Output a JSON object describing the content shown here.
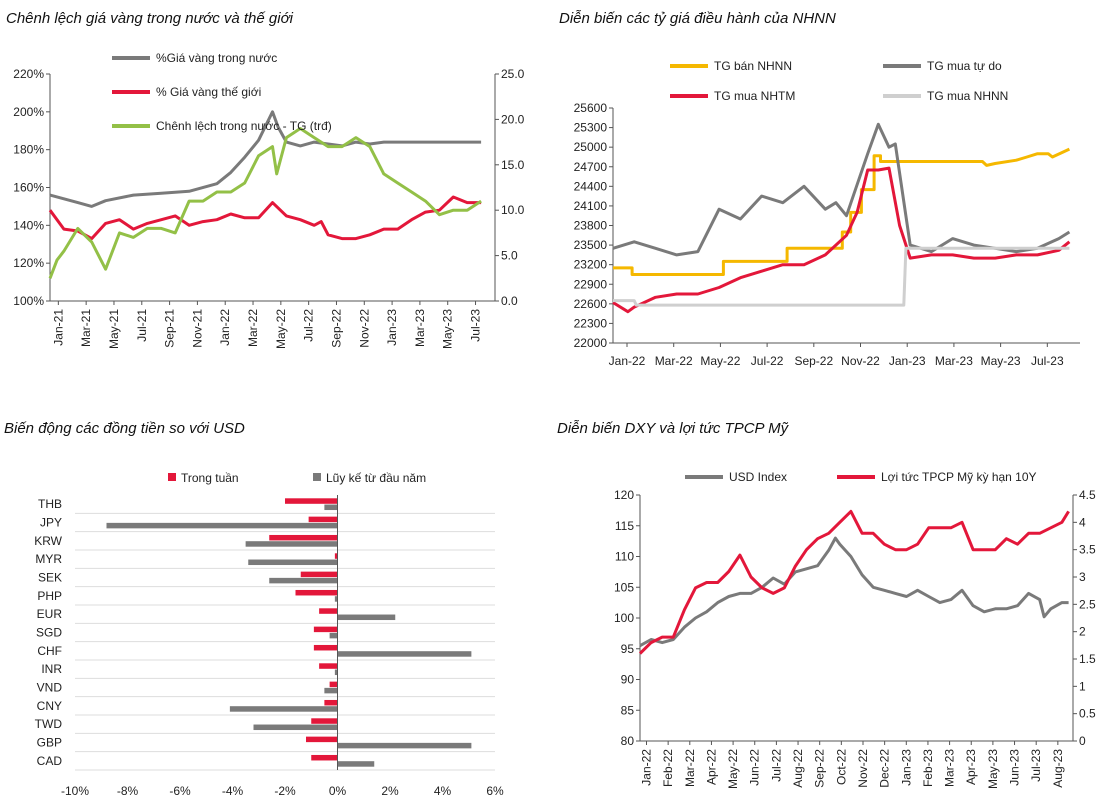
{
  "colors": {
    "gray": "#7a7a7a",
    "red": "#e3173a",
    "green": "#93c047",
    "yellow": "#f5b800",
    "lightgray": "#cfcfcf",
    "axis": "#555555"
  },
  "chart_data": [
    {
      "id": "gold",
      "type": "line",
      "title": "Chênh lệch giá vàng trong nước và thế giới",
      "x_ticks": [
        "Jan-21",
        "Mar-21",
        "May-21",
        "Jul-21",
        "Sep-21",
        "Nov-21",
        "Jan-22",
        "Mar-22",
        "May-22",
        "Jul-22",
        "Sep-22",
        "Nov-22",
        "Jan-23",
        "Mar-23",
        "May-23",
        "Jul-23"
      ],
      "y_left": {
        "min": 100,
        "max": 220,
        "ticks": [
          "100%",
          "120%",
          "140%",
          "160%",
          "180%",
          "200%",
          "220%"
        ]
      },
      "y_right": {
        "min": 0,
        "max": 25,
        "ticks": [
          "0.0",
          "5.0",
          "10.0",
          "15.0",
          "20.0",
          "25.0"
        ]
      },
      "legend": [
        "%Giá vàng trong nước",
        "% Giá vàng thế giới",
        "Chênh lệch trong nước - TG (trđ)"
      ],
      "series": [
        {
          "name": "%Giá vàng trong nước",
          "axis": "left",
          "color": "gray",
          "x": [
            0,
            2,
            3,
            4,
            6,
            8,
            10,
            12,
            13,
            14,
            15,
            16,
            16.4,
            17,
            18,
            19,
            20,
            21,
            22,
            23,
            24,
            26,
            28,
            30,
            31
          ],
          "y": [
            156,
            152,
            150,
            153,
            156,
            157,
            158,
            162,
            168,
            176,
            185,
            200,
            192,
            184,
            182,
            184,
            183,
            182,
            184,
            183,
            184,
            184,
            184,
            184,
            184
          ]
        },
        {
          "name": "% Giá vàng thế giới",
          "axis": "left",
          "color": "red",
          "x": [
            0,
            1,
            2,
            3,
            4,
            5,
            6,
            7,
            8,
            9,
            10,
            11,
            12,
            13,
            14,
            15,
            16,
            17,
            18,
            19,
            19.5,
            20,
            21,
            22,
            23,
            24,
            25,
            26,
            27,
            28,
            29,
            30,
            31
          ],
          "y": [
            148,
            138,
            137,
            133,
            141,
            143,
            138,
            141,
            143,
            145,
            140,
            142,
            143,
            146,
            144,
            144,
            152,
            145,
            143,
            140,
            142,
            135,
            133,
            133,
            135,
            138,
            138,
            143,
            147,
            148,
            155,
            152,
            152
          ]
        },
        {
          "name": "Chênh lệch trong nước - TG (trđ)",
          "axis": "right",
          "color": "green",
          "x": [
            0,
            0.5,
            1,
            2,
            3,
            4,
            5,
            6,
            7,
            8,
            9,
            10,
            11,
            12,
            13,
            14,
            15,
            16,
            16.3,
            17,
            18,
            19,
            20,
            21,
            22,
            23,
            24,
            25,
            26,
            27,
            28,
            29,
            30,
            31
          ],
          "y": [
            2.5,
            4.5,
            5.5,
            8,
            6.5,
            3.5,
            7.5,
            7,
            8,
            8,
            7.5,
            11,
            11,
            12,
            12,
            13,
            16,
            17,
            14,
            18,
            19,
            18,
            17,
            17,
            18,
            17,
            14,
            13,
            12,
            11,
            9.5,
            10,
            10,
            11
          ]
        }
      ]
    },
    {
      "id": "fx",
      "type": "line",
      "title": "Diễn biến các tỷ giá điều hành của NHNN",
      "x_ticks": [
        "Jan-22",
        "Mar-22",
        "May-22",
        "Jul-22",
        "Sep-22",
        "Nov-22",
        "Jan-23",
        "Mar-23",
        "May-23",
        "Jul-23"
      ],
      "y": {
        "min": 22000,
        "max": 25600,
        "ticks": [
          "22000",
          "22300",
          "22600",
          "22900",
          "23200",
          "23500",
          "23800",
          "24100",
          "24400",
          "24700",
          "25000",
          "25300",
          "25600"
        ]
      },
      "legend": [
        "TG bán NHNN",
        "TG mua tự do",
        "TG mua NHTM",
        "TG mua NHNN"
      ],
      "series": [
        {
          "name": "TG bán NHNN",
          "color": "yellow",
          "x": [
            0,
            0.9,
            0.9,
            5.2,
            5.2,
            8.2,
            8.2,
            10.8,
            10.8,
            11.2,
            11.2,
            11.7,
            11.7,
            12.3,
            12.3,
            12.6,
            12.6,
            13.5,
            13.5,
            15.6,
            15.6,
            17.4,
            17.6,
            18,
            19,
            19.5,
            20,
            20.5,
            20.7,
            21.5
          ],
          "y": [
            23150,
            23150,
            23050,
            23050,
            23250,
            23250,
            23450,
            23450,
            23700,
            23700,
            24000,
            24000,
            24350,
            24350,
            24870,
            24870,
            24780,
            24780,
            24780,
            24780,
            24780,
            24780,
            24720,
            24750,
            24800,
            24850,
            24900,
            24900,
            24850,
            24970
          ]
        },
        {
          "name": "TG mua tự do",
          "color": "gray",
          "x": [
            0,
            1,
            2,
            3,
            4,
            5,
            6,
            7,
            8,
            9,
            10,
            10.5,
            11,
            12,
            12.5,
            13,
            13.3,
            14,
            15,
            16,
            17,
            18,
            19,
            20,
            21,
            21.5
          ],
          "y": [
            23450,
            23550,
            23450,
            23350,
            23400,
            24050,
            23900,
            24250,
            24150,
            24400,
            24050,
            24150,
            23950,
            24900,
            25350,
            25000,
            25050,
            23500,
            23400,
            23600,
            23500,
            23450,
            23400,
            23450,
            23600,
            23700
          ]
        },
        {
          "name": "TG mua NHTM",
          "color": "red",
          "x": [
            0,
            0.7,
            1,
            2,
            3,
            4,
            5,
            6,
            7,
            8,
            9,
            10,
            11,
            11.5,
            12,
            12.5,
            13,
            13.5,
            14,
            15,
            16,
            17,
            18,
            19,
            20,
            21,
            21.5
          ],
          "y": [
            22620,
            22480,
            22550,
            22700,
            22750,
            22750,
            22850,
            23000,
            23100,
            23200,
            23200,
            23350,
            23650,
            24000,
            24650,
            24650,
            24680,
            23800,
            23300,
            23350,
            23350,
            23300,
            23300,
            23350,
            23350,
            23420,
            23550
          ]
        },
        {
          "name": "TG mua NHNN",
          "color": "lightgray",
          "x": [
            0,
            1,
            1.1,
            13.7,
            13.8,
            21.5
          ],
          "y": [
            22650,
            22650,
            22580,
            22580,
            23450,
            23450
          ]
        }
      ]
    },
    {
      "id": "currencies",
      "type": "bar",
      "title": "Biến động các đồng tiền so với USD",
      "categories": [
        "THB",
        "JPY",
        "KRW",
        "MYR",
        "SEK",
        "PHP",
        "EUR",
        "SGD",
        "CHF",
        "INR",
        "VND",
        "CNY",
        "TWD",
        "GBP",
        "CAD"
      ],
      "x_ticks": [
        "-10%",
        "-8%",
        "-6%",
        "-4%",
        "-2%",
        "0%",
        "2%",
        "4%",
        "6%"
      ],
      "xlim": [
        -10,
        6
      ],
      "legend": [
        "Trong tuần",
        "Lũy kế từ đầu năm"
      ],
      "series": [
        {
          "name": "Trong tuần",
          "color": "red",
          "values": [
            -2.0,
            -1.1,
            -2.6,
            -0.1,
            -1.4,
            -1.6,
            -0.7,
            -0.9,
            -0.9,
            -0.7,
            -0.3,
            -0.5,
            -1.0,
            -1.2,
            -1.0
          ]
        },
        {
          "name": "Lũy kế từ đầu năm",
          "color": "gray",
          "values": [
            -0.5,
            -8.8,
            -3.5,
            -3.4,
            -2.6,
            -0.1,
            2.2,
            -0.3,
            5.1,
            -0.1,
            -0.5,
            -4.1,
            -3.2,
            5.1,
            1.4
          ]
        }
      ]
    },
    {
      "id": "dxy",
      "type": "line",
      "title": "Diễn biến DXY và lợi tức TPCP Mỹ",
      "x_ticks": [
        "Jan-22",
        "Feb-22",
        "Mar-22",
        "Apr-22",
        "May-22",
        "Jun-22",
        "Jul-22",
        "Aug-22",
        "Sep-22",
        "Oct-22",
        "Nov-22",
        "Dec-22",
        "Jan-23",
        "Feb-23",
        "Mar-23",
        "Apr-23",
        "May-23",
        "Jun-23",
        "Jul-23",
        "Aug-23"
      ],
      "y_left": {
        "min": 80,
        "max": 120,
        "ticks": [
          "80",
          "85",
          "90",
          "95",
          "100",
          "105",
          "110",
          "115",
          "120"
        ]
      },
      "y_right": {
        "min": 0,
        "max": 4.5,
        "ticks": [
          "0",
          "0.5",
          "1",
          "1.5",
          "2",
          "2.5",
          "3",
          "3.5",
          "4",
          "4.5"
        ]
      },
      "legend": [
        "USD Index",
        "Lợi tức TPCP Mỹ kỳ hạn 10Y"
      ],
      "series": [
        {
          "name": "USD Index",
          "axis": "left",
          "color": "gray",
          "x": [
            0,
            0.5,
            1,
            1.5,
            2,
            2.5,
            3,
            3.5,
            4,
            4.5,
            5,
            5.5,
            6,
            6.5,
            7,
            7.5,
            8,
            8.5,
            8.8,
            9,
            9.5,
            10,
            10.5,
            11,
            11.5,
            12,
            12.5,
            13,
            13.5,
            14,
            14.5,
            15,
            15.5,
            16,
            16.5,
            17,
            17.5,
            18,
            18.2,
            18.5,
            19,
            19.3
          ],
          "y": [
            95.5,
            96.5,
            96,
            96.5,
            98.5,
            100,
            101,
            102.5,
            103.5,
            104,
            104,
            105,
            106.5,
            105.5,
            107.5,
            108,
            108.5,
            111,
            113,
            112,
            110,
            107,
            105,
            104.5,
            104,
            103.5,
            104.5,
            103.5,
            102.5,
            103,
            104.5,
            102,
            101,
            101.5,
            101.5,
            102,
            104,
            103,
            100.2,
            101.5,
            102.5,
            102.5
          ]
        },
        {
          "name": "Lợi tức TPCP Mỹ kỳ hạn 10Y",
          "axis": "right",
          "color": "red",
          "x": [
            0,
            0.5,
            1,
            1.5,
            2,
            2.5,
            3,
            3.5,
            4,
            4.5,
            5,
            5.5,
            6,
            6.5,
            7,
            7.5,
            8,
            8.5,
            9,
            9.5,
            10,
            10.5,
            11,
            11.5,
            12,
            12.5,
            13,
            13.5,
            14,
            14.5,
            15,
            15.5,
            16,
            16.5,
            17,
            17.5,
            18,
            18.5,
            19,
            19.3
          ],
          "y": [
            1.6,
            1.8,
            1.9,
            1.9,
            2.4,
            2.8,
            2.9,
            2.9,
            3.1,
            3.4,
            3.0,
            2.8,
            2.7,
            2.8,
            3.2,
            3.5,
            3.7,
            3.8,
            4.0,
            4.2,
            3.8,
            3.8,
            3.6,
            3.5,
            3.5,
            3.6,
            3.9,
            3.9,
            3.9,
            4.0,
            3.5,
            3.5,
            3.5,
            3.7,
            3.6,
            3.8,
            3.8,
            3.9,
            4.0,
            4.2
          ]
        }
      ]
    }
  ]
}
